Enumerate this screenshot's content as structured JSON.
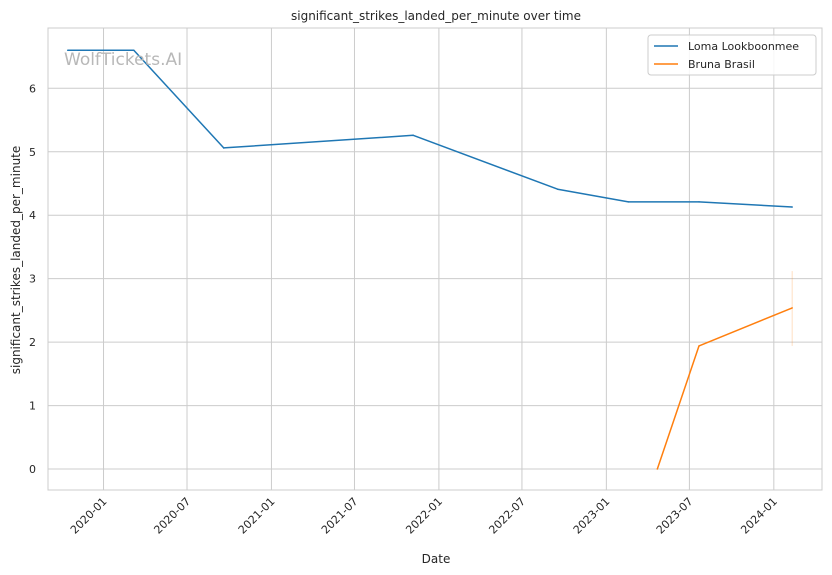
{
  "chart_data": {
    "type": "line",
    "title": "significant_strikes_landed_per_minute over time",
    "xlabel": "Date",
    "ylabel": "significant_strikes_landed_per_minute",
    "watermark": "WolfTickets.AI",
    "x_ticks": [
      "2020-01",
      "2020-07",
      "2021-01",
      "2021-07",
      "2022-01",
      "2022-07",
      "2023-01",
      "2023-07",
      "2024-01"
    ],
    "y_ticks": [
      0,
      1,
      2,
      3,
      4,
      5,
      6
    ],
    "xlim": [
      "2019-09-02",
      "2024-04-15"
    ],
    "ylim": [
      -0.33,
      6.95
    ],
    "grid": true,
    "legend_position": "top-right",
    "series": [
      {
        "name": "Loma Lookboonmee",
        "color": "#1f77b4",
        "points": [
          {
            "x": "2019-10-15",
            "y": 6.6
          },
          {
            "x": "2020-03-07",
            "y": 6.6
          },
          {
            "x": "2020-09-19",
            "y": 5.06
          },
          {
            "x": "2021-11-06",
            "y": 5.26
          },
          {
            "x": "2022-09-17",
            "y": 4.41
          },
          {
            "x": "2023-02-18",
            "y": 4.21
          },
          {
            "x": "2023-07-22",
            "y": 4.21
          },
          {
            "x": "2024-02-10",
            "y": 4.13
          }
        ]
      },
      {
        "name": "Bruna Brasil",
        "color": "#ff7f0e",
        "points": [
          {
            "x": "2023-04-22",
            "y": 0.0
          },
          {
            "x": "2023-07-22",
            "y": 1.94
          },
          {
            "x": "2024-02-10",
            "y": 2.54
          }
        ],
        "band": {
          "x": "2024-02-10",
          "low": 1.94,
          "high": 3.12
        }
      }
    ]
  }
}
